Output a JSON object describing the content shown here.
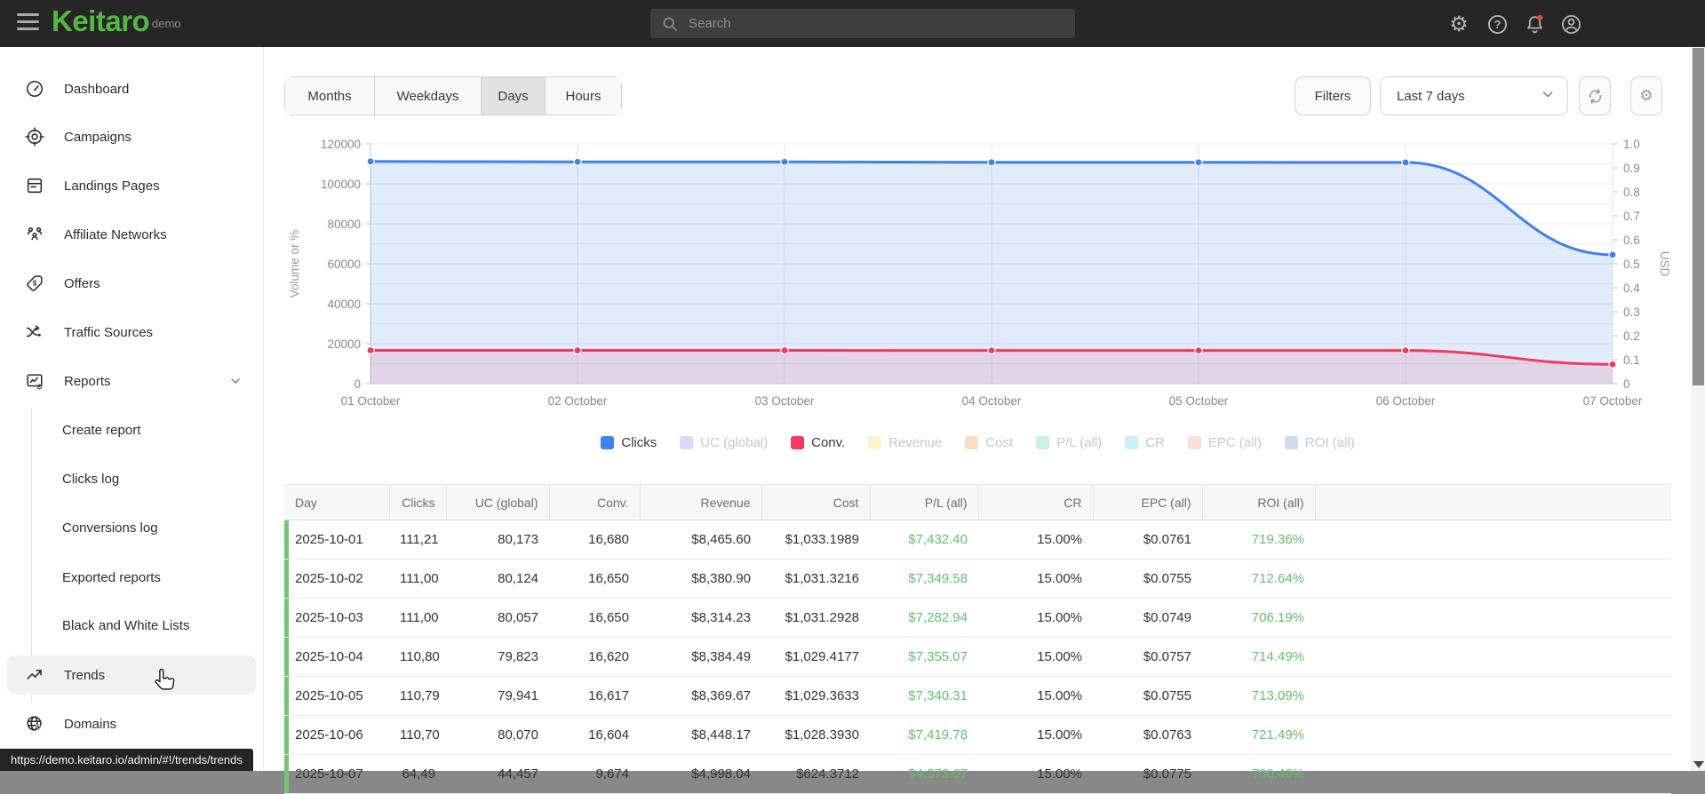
{
  "topbar": {
    "brand": "Keitaro",
    "brand_badge": "demo",
    "search_placeholder": "Search"
  },
  "sidebar": {
    "main": [
      {
        "label": "Dashboard",
        "icon": "gauge-icon"
      },
      {
        "label": "Campaigns",
        "icon": "target-icon"
      },
      {
        "label": "Landings Pages",
        "icon": "pages-icon"
      },
      {
        "label": "Affiliate Networks",
        "icon": "network-icon"
      },
      {
        "label": "Offers",
        "icon": "tag-icon"
      },
      {
        "label": "Traffic Sources",
        "icon": "traffic-split-icon"
      },
      {
        "label": "Reports",
        "icon": "report-chart-icon",
        "expanded": true
      }
    ],
    "reports_children": [
      {
        "label": "Create report"
      },
      {
        "label": "Clicks log"
      },
      {
        "label": "Conversions log"
      },
      {
        "label": "Exported reports"
      },
      {
        "label": "Black and White Lists"
      }
    ],
    "bottom": [
      {
        "label": "Trends",
        "icon": "trend-up-icon",
        "active": true
      },
      {
        "label": "Domains",
        "icon": "globe-icon"
      }
    ]
  },
  "controls": {
    "tabs": [
      "Months",
      "Weekdays",
      "Days",
      "Hours"
    ],
    "active_tab": "Days",
    "filters_label": "Filters",
    "range_value": "Last 7 days"
  },
  "chart_data": {
    "type": "line",
    "x": [
      "01 October",
      "02 October",
      "03 October",
      "04 October",
      "05 October",
      "06 October",
      "07 October"
    ],
    "series": [
      {
        "name": "Clicks",
        "color": "#4181ee",
        "fill": "rgba(65,129,238,0.16)",
        "values": [
          111210,
          111000,
          111000,
          110800,
          110790,
          110700,
          64490
        ]
      },
      {
        "name": "Conv.",
        "color": "#f23a60",
        "fill": "rgba(242,58,96,0.13)",
        "values": [
          16680,
          16650,
          16650,
          16620,
          16617,
          16604,
          9674
        ]
      }
    ],
    "ylabel_left": "Volume or %",
    "ylabel_right": "USD",
    "ylim_left": [
      0,
      120000
    ],
    "yticks_left": [
      0,
      20000,
      40000,
      60000,
      80000,
      100000,
      120000
    ],
    "ylim_right": [
      0,
      1.0
    ],
    "ytick_step_right": 0.1,
    "grid": true,
    "legend_position": "bottom"
  },
  "legend": [
    {
      "label": "Clicks",
      "color": "#4181ee",
      "active": true
    },
    {
      "label": "UC (global)",
      "color": "#ded8f8",
      "active": false
    },
    {
      "label": "Conv.",
      "color": "#f23a60",
      "active": true
    },
    {
      "label": "Revenue",
      "color": "#faf3cf",
      "active": false
    },
    {
      "label": "Cost",
      "color": "#f8dfc4",
      "active": false
    },
    {
      "label": "P/L (all)",
      "color": "#c9f2e3",
      "active": false
    },
    {
      "label": "CR",
      "color": "#cdeefb",
      "active": false
    },
    {
      "label": "EPC (all)",
      "color": "#fadede",
      "active": false
    },
    {
      "label": "ROI (all)",
      "color": "#cfdbe8",
      "active": false
    }
  ],
  "table": {
    "columns": [
      "Day",
      "Clicks",
      "UC (global)",
      "Conv.",
      "Revenue",
      "Cost",
      "P/L (all)",
      "CR",
      "EPC (all)",
      "ROI (all)"
    ],
    "rows": [
      [
        "2025-10-01",
        "111,21",
        "80,173",
        "16,680",
        "$8,465.60",
        "$1,033.1989",
        "$7,432.40",
        "15.00%",
        "$0.0761",
        "719.36%"
      ],
      [
        "2025-10-02",
        "111,00",
        "80,124",
        "16,650",
        "$8,380.90",
        "$1,031.3216",
        "$7,349.58",
        "15.00%",
        "$0.0755",
        "712.64%"
      ],
      [
        "2025-10-03",
        "111,00",
        "80,057",
        "16,650",
        "$8,314.23",
        "$1,031.2928",
        "$7,282.94",
        "15.00%",
        "$0.0749",
        "706.19%"
      ],
      [
        "2025-10-04",
        "110,80",
        "79,823",
        "16,620",
        "$8,384.49",
        "$1,029.4177",
        "$7,355.07",
        "15.00%",
        "$0.0757",
        "714.49%"
      ],
      [
        "2025-10-05",
        "110,79",
        "79,941",
        "16,617",
        "$8,369.67",
        "$1,029.3633",
        "$7,340.31",
        "15.00%",
        "$0.0755",
        "713.09%"
      ],
      [
        "2025-10-06",
        "110,70",
        "80,070",
        "16,604",
        "$8,448.17",
        "$1,028.3930",
        "$7,419.78",
        "15.00%",
        "$0.0763",
        "721.49%"
      ],
      [
        "2025-10-07",
        "64,49",
        "44,457",
        "9,674",
        "$4,998.04",
        "$624.3712",
        "$4,373.67",
        "15.00%",
        "$0.0775",
        "700.49%"
      ]
    ]
  },
  "statusbar": {
    "url": "https://demo.keitaro.io/admin/#!/trends/trends"
  }
}
